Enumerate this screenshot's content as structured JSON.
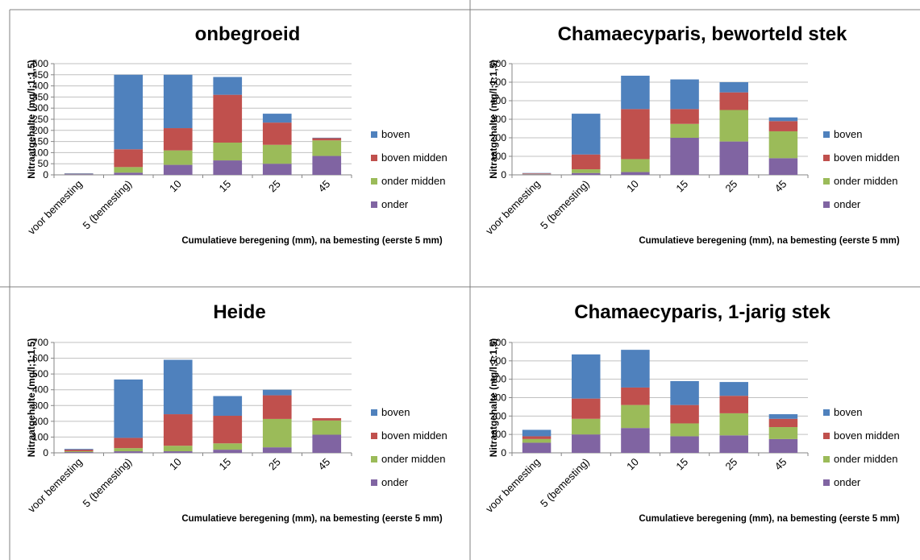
{
  "chart_data": [
    {
      "type": "bar",
      "stacked": true,
      "title": "onbegroeid",
      "xlabel": "Cumulatieve beregening (mm), na bemesting (eerste 5 mm)",
      "ylabel": "Nitraatgehalte (mg/l;1:1,5)",
      "categories": [
        "voor bemesting",
        "5 (bemesting)",
        "10",
        "15",
        "25",
        "45"
      ],
      "ylim": [
        0,
        500
      ],
      "yticks": [
        0,
        50,
        100,
        150,
        200,
        250,
        300,
        350,
        400,
        450,
        500
      ],
      "grid": true,
      "legend": "right",
      "series": [
        {
          "name": "onder",
          "values": [
            3,
            10,
            45,
            65,
            50,
            85
          ]
        },
        {
          "name": "onder midden",
          "values": [
            1,
            25,
            65,
            80,
            85,
            70
          ]
        },
        {
          "name": "boven midden",
          "values": [
            1,
            80,
            100,
            215,
            100,
            10
          ]
        },
        {
          "name": "boven",
          "values": [
            2,
            335,
            240,
            80,
            40,
            2
          ]
        }
      ]
    },
    {
      "type": "bar",
      "stacked": true,
      "title": "Chamaecyparis, beworteld stek",
      "xlabel": "Cumulatieve beregening (mm), na bemesting (eerste 5 mm)",
      "ylabel": "Nitraatgehalte (mg/l;1:1,5)",
      "categories": [
        "voor bemesting",
        "5 (bemesting)",
        "10",
        "15",
        "25",
        "45"
      ],
      "ylim": [
        0,
        600
      ],
      "yticks": [
        0,
        100,
        200,
        300,
        400,
        500,
        600
      ],
      "grid": true,
      "legend": "right",
      "series": [
        {
          "name": "onder",
          "values": [
            3,
            10,
            15,
            200,
            180,
            90
          ]
        },
        {
          "name": "onder midden",
          "values": [
            2,
            20,
            70,
            75,
            170,
            145
          ]
        },
        {
          "name": "boven midden",
          "values": [
            3,
            80,
            270,
            80,
            95,
            55
          ]
        },
        {
          "name": "boven",
          "values": [
            2,
            220,
            180,
            160,
            55,
            20
          ]
        }
      ]
    },
    {
      "type": "bar",
      "stacked": true,
      "title": "Heide",
      "xlabel": "Cumulatieve beregening (mm), na bemesting (eerste 5 mm)",
      "ylabel": "Nitraatgehalte (mg/l;1:1,5)",
      "categories": [
        "voor bemesting",
        "5 (bemesting)",
        "10",
        "15",
        "25",
        "45"
      ],
      "ylim": [
        0,
        700
      ],
      "yticks": [
        0,
        100,
        200,
        300,
        400,
        500,
        600,
        700
      ],
      "grid": true,
      "legend": "right",
      "series": [
        {
          "name": "onder",
          "values": [
            5,
            10,
            10,
            20,
            35,
            115
          ]
        },
        {
          "name": "onder midden",
          "values": [
            5,
            20,
            35,
            40,
            180,
            90
          ]
        },
        {
          "name": "boven midden",
          "values": [
            10,
            65,
            200,
            175,
            150,
            15
          ]
        },
        {
          "name": "boven",
          "values": [
            5,
            370,
            345,
            125,
            35,
            0
          ]
        }
      ]
    },
    {
      "type": "bar",
      "stacked": true,
      "title": "Chamaecyparis, 1-jarig stek",
      "xlabel": "Cumulatieve beregening (mm), na bemesting (eerste 5 mm)",
      "ylabel": "Nitraatgehalte (mg/l;1:1,5)",
      "categories": [
        "voor bemesting",
        "5 (bemesting)",
        "10",
        "15",
        "25",
        "45"
      ],
      "ylim": [
        0,
        600
      ],
      "yticks": [
        0,
        100,
        200,
        300,
        400,
        500,
        600
      ],
      "grid": true,
      "legend": "right",
      "series": [
        {
          "name": "onder",
          "values": [
            55,
            100,
            135,
            90,
            95,
            75
          ]
        },
        {
          "name": "onder midden",
          "values": [
            20,
            85,
            125,
            70,
            120,
            65
          ]
        },
        {
          "name": "boven midden",
          "values": [
            15,
            110,
            95,
            100,
            95,
            45
          ]
        },
        {
          "name": "boven",
          "values": [
            35,
            240,
            205,
            130,
            75,
            25
          ]
        }
      ]
    }
  ],
  "colors": {
    "onder": "#8064A2",
    "onder midden": "#9BBB59",
    "boven midden": "#C0504D",
    "boven": "#4F81BD",
    "gridline": "#C0C0C0",
    "axis": "#868686",
    "divider": "#808080"
  }
}
